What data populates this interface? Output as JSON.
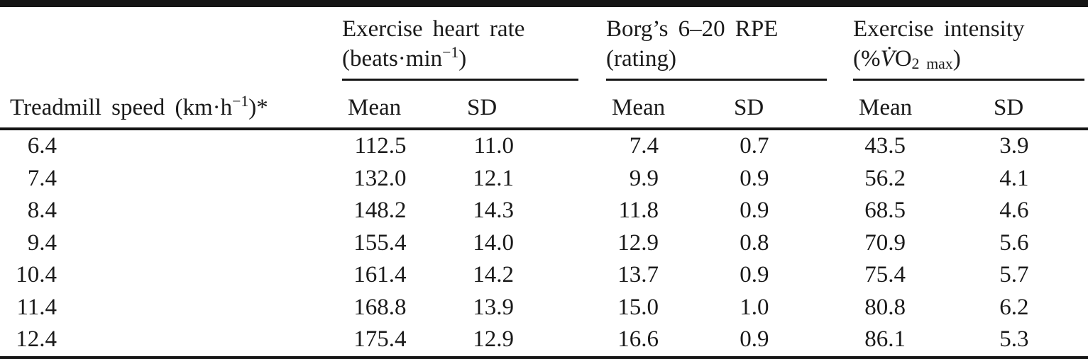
{
  "table": {
    "col1_header": {
      "pre": "Treadmill speed (km·h",
      "sup": "−1",
      "post": ")*"
    },
    "group_heart_rate": {
      "line1": "Exercise heart rate",
      "unit_pre": "(beats·min",
      "unit_sup": "−1",
      "unit_post": ")"
    },
    "group_rpe": {
      "line1": "Borg’s 6–20 RPE",
      "unit": "(rating)"
    },
    "group_intensity": {
      "line1": "Exercise intensity",
      "unit_pre": "(%",
      "unit_v": "V̇",
      "unit_o": "O",
      "unit_sub_2": "2",
      "unit_sub_max": "max",
      "unit_post": ")"
    },
    "sub_headers": [
      "Mean",
      "SD",
      "Mean",
      "SD",
      "Mean",
      "SD"
    ],
    "rows": [
      {
        "speed": "6.4",
        "hr_mean": "112.5",
        "hr_sd": "11.0",
        "rpe_mean": "7.4",
        "rpe_sd": "0.7",
        "int_mean": "43.5",
        "int_sd": "3.9"
      },
      {
        "speed": "7.4",
        "hr_mean": "132.0",
        "hr_sd": "12.1",
        "rpe_mean": "9.9",
        "rpe_sd": "0.9",
        "int_mean": "56.2",
        "int_sd": "4.1"
      },
      {
        "speed": "8.4",
        "hr_mean": "148.2",
        "hr_sd": "14.3",
        "rpe_mean": "11.8",
        "rpe_sd": "0.9",
        "int_mean": "68.5",
        "int_sd": "4.6"
      },
      {
        "speed": "9.4",
        "hr_mean": "155.4",
        "hr_sd": "14.0",
        "rpe_mean": "12.9",
        "rpe_sd": "0.8",
        "int_mean": "70.9",
        "int_sd": "5.6"
      },
      {
        "speed": "10.4",
        "hr_mean": "161.4",
        "hr_sd": "14.2",
        "rpe_mean": "13.7",
        "rpe_sd": "0.9",
        "int_mean": "75.4",
        "int_sd": "5.7"
      },
      {
        "speed": "11.4",
        "hr_mean": "168.8",
        "hr_sd": "13.9",
        "rpe_mean": "15.0",
        "rpe_sd": "1.0",
        "int_mean": "80.8",
        "int_sd": "6.2"
      },
      {
        "speed": "12.4",
        "hr_mean": "175.4",
        "hr_sd": "12.9",
        "rpe_mean": "16.6",
        "rpe_sd": "0.9",
        "int_mean": "86.1",
        "int_sd": "5.3"
      }
    ]
  },
  "colors": {
    "text": "#1a1a1a",
    "rule": "#151515",
    "background": "#ffffff"
  }
}
